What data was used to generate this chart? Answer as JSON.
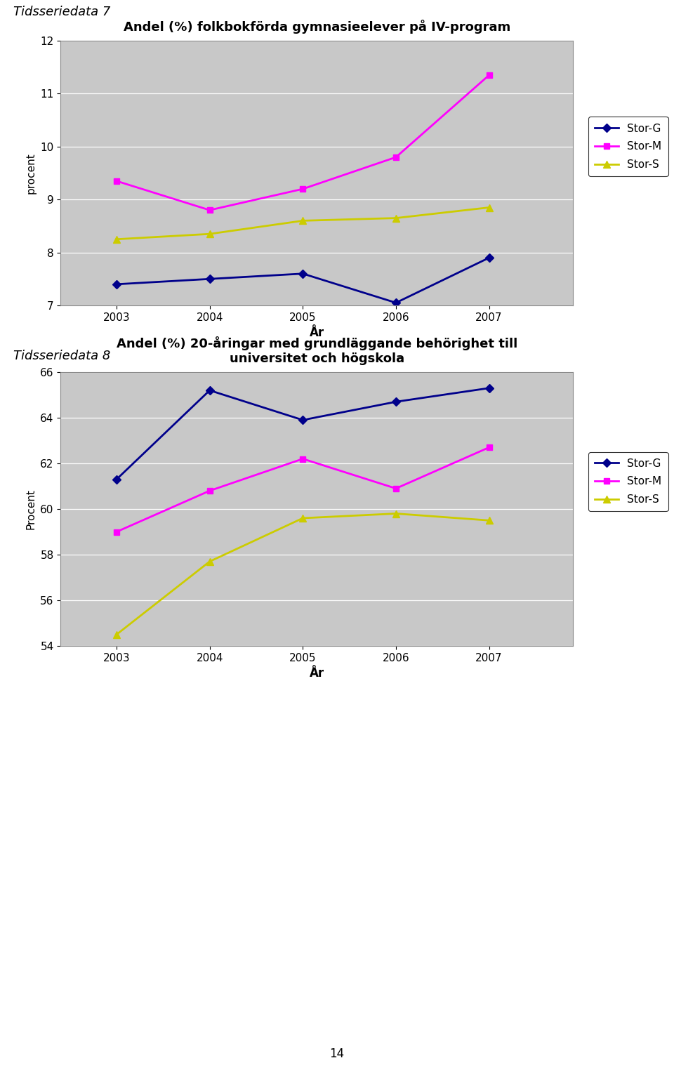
{
  "chart1": {
    "title": "Andel (%) folkbokförda gymnasieelever på IV-program",
    "ylabel": "procent",
    "xlabel": "År",
    "years": [
      2003,
      2004,
      2005,
      2006,
      2007
    ],
    "stor_g": [
      7.4,
      7.5,
      7.6,
      7.05,
      7.9
    ],
    "stor_m": [
      9.35,
      8.8,
      9.2,
      9.8,
      11.35
    ],
    "stor_s": [
      8.25,
      8.35,
      8.6,
      8.65,
      8.85
    ],
    "ylim": [
      7,
      12
    ],
    "yticks": [
      7,
      8,
      9,
      10,
      11,
      12
    ]
  },
  "chart2": {
    "title": "Andel (%) 20-åringar med grundläggande behörighet till\nuniversitet och högskola",
    "ylabel": "Procent",
    "xlabel": "År",
    "years": [
      2003,
      2004,
      2005,
      2006,
      2007
    ],
    "stor_g": [
      61.3,
      65.2,
      63.9,
      64.7,
      65.3
    ],
    "stor_m": [
      59.0,
      60.8,
      62.2,
      60.9,
      62.7
    ],
    "stor_s": [
      54.5,
      57.7,
      59.6,
      59.8,
      59.5
    ],
    "ylim": [
      54,
      66
    ],
    "yticks": [
      54,
      56,
      58,
      60,
      62,
      64,
      66
    ]
  },
  "color_g": "#00008B",
  "color_m": "#FF00FF",
  "color_s": "#CCCC00",
  "legend_labels": [
    "Stor-G",
    "Stor-M",
    "Stor-S"
  ],
  "bg_color": "#C8C8C8",
  "title1": "Tidsseriedata 7",
  "title2": "Tidsseriedata 8",
  "page_number": "14",
  "box_edge_color": "#888888"
}
